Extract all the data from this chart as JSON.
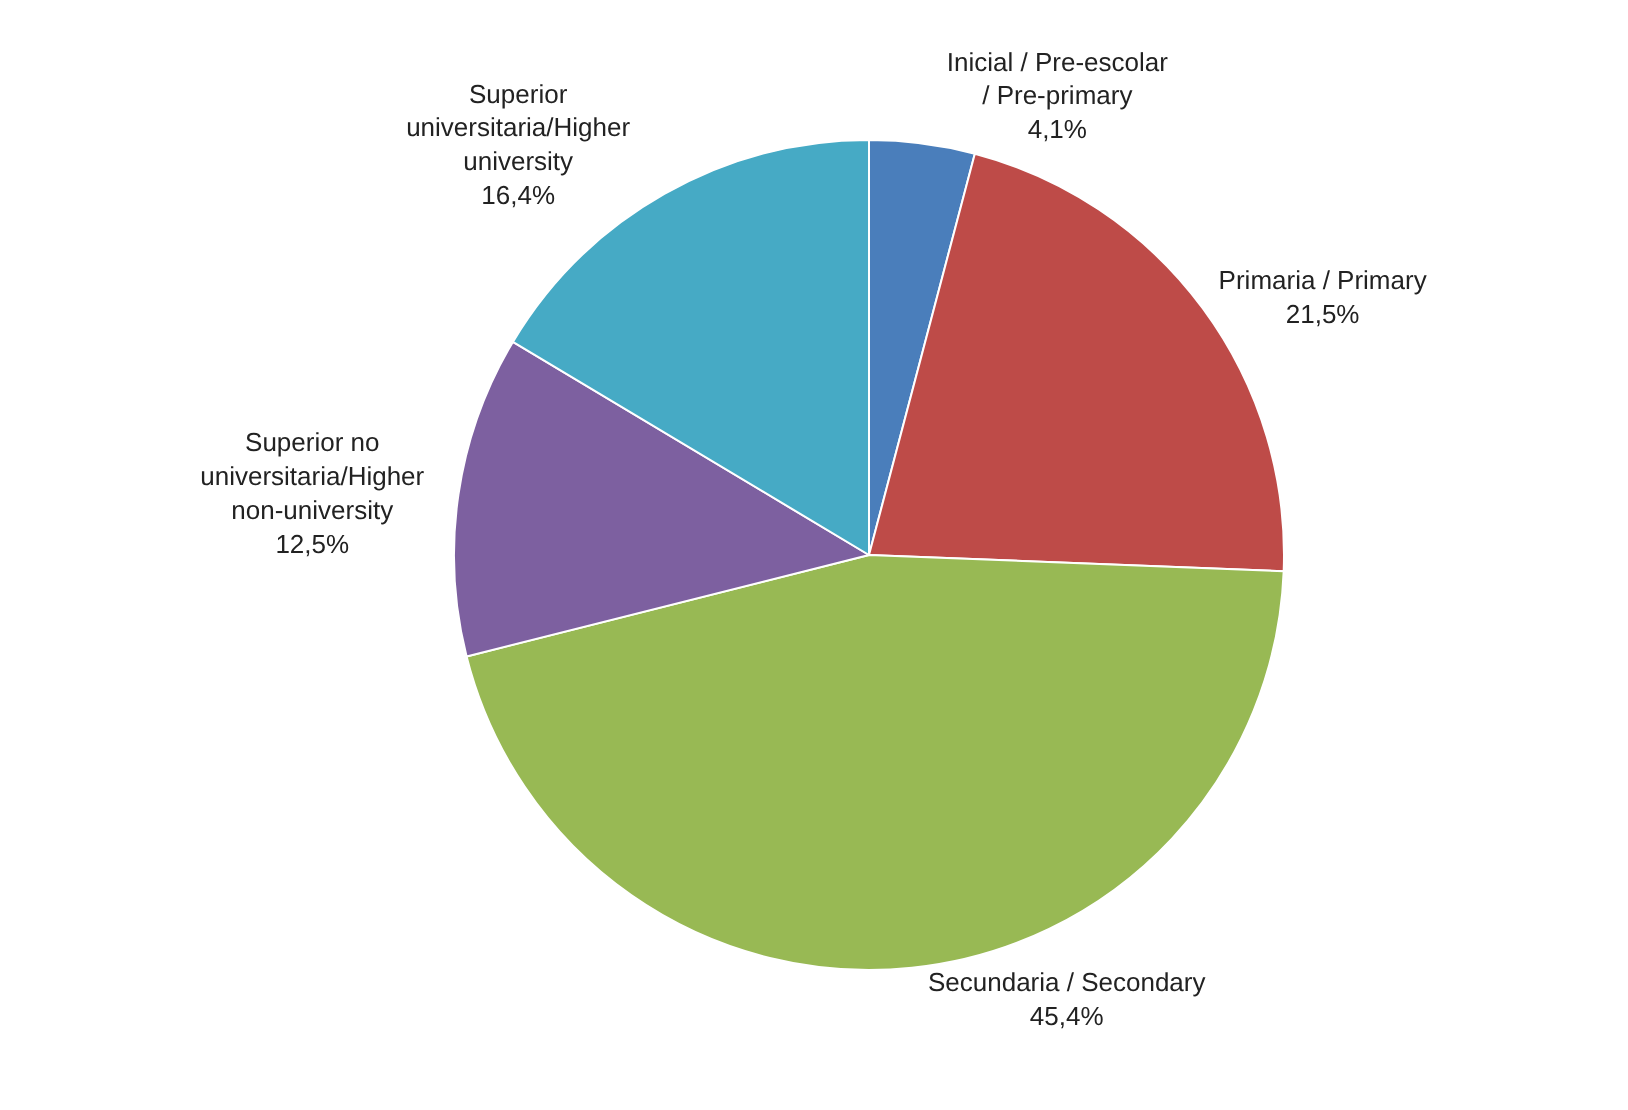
{
  "chart_data": {
    "type": "pie",
    "categories": [
      "Inicial / Pre-escolar / Pre-primary",
      "Primaria / Primary",
      "Secundaria / Secondary",
      "Superior no universitaria/Higher non-university",
      "Superior universitaria/Higher university"
    ],
    "values": [
      4.1,
      21.5,
      45.4,
      12.5,
      16.4
    ],
    "value_labels": [
      "4,1%",
      "21,5%",
      "45,4%",
      "12,5%",
      "16,4%"
    ],
    "colors": [
      "#4a7ebb",
      "#be4b48",
      "#98b954",
      "#7d60a0",
      "#46aac5"
    ],
    "legend": false
  }
}
